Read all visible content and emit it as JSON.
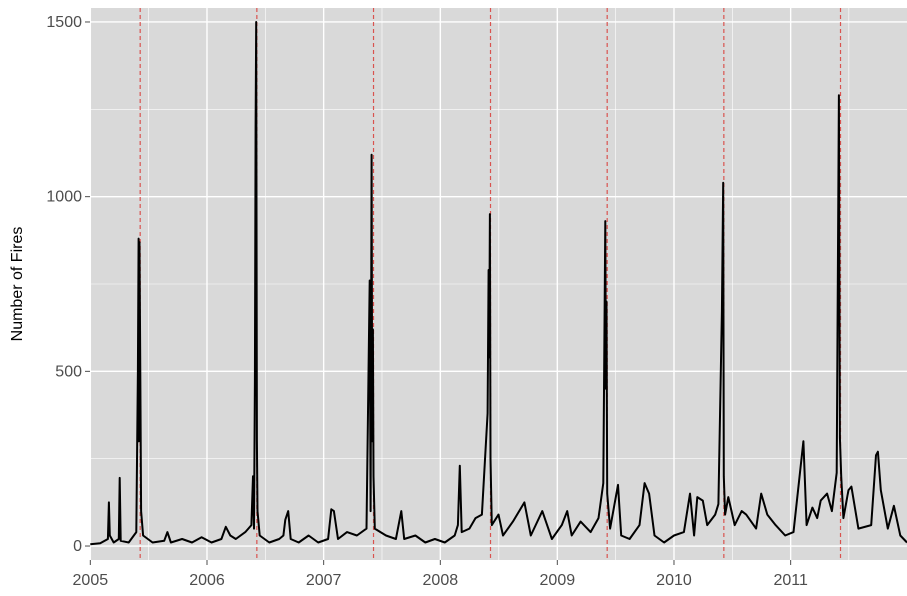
{
  "chart_data": {
    "type": "line",
    "title": "",
    "xlabel": "",
    "ylabel": "Number of Fires",
    "xlim": [
      "2004-12-31",
      "2011-12-31"
    ],
    "ylim": [
      -40,
      1540
    ],
    "grid": true,
    "legend": "none",
    "colors": {
      "panel": "#d9d9d9",
      "grid": "#ffffff",
      "line": "#000000",
      "vline": "#d9534f"
    },
    "x_ticks": [
      {
        "label": "2005",
        "date": "2005-01-01"
      },
      {
        "label": "2006",
        "date": "2006-01-01"
      },
      {
        "label": "2007",
        "date": "2007-01-01"
      },
      {
        "label": "2008",
        "date": "2008-01-01"
      },
      {
        "label": "2009",
        "date": "2009-01-01"
      },
      {
        "label": "2010",
        "date": "2010-01-01"
      },
      {
        "label": "2011",
        "date": "2011-01-01"
      }
    ],
    "y_ticks": [
      {
        "label": "0",
        "value": 0
      },
      {
        "label": "500",
        "value": 500
      },
      {
        "label": "1000",
        "value": 1000
      },
      {
        "label": "1500",
        "value": 1500
      }
    ],
    "reference_lines": [
      "2005-06-06",
      "2006-06-06",
      "2007-06-06",
      "2008-06-06",
      "2009-06-06",
      "2010-06-06",
      "2011-06-06"
    ],
    "series": [
      {
        "values": [
          [
            "2005-01-01",
            5
          ],
          [
            "2005-02-01",
            8
          ],
          [
            "2005-02-25",
            20
          ],
          [
            "2005-02-28",
            125
          ],
          [
            "2005-03-03",
            30
          ],
          [
            "2005-03-15",
            10
          ],
          [
            "2005-03-31",
            20
          ],
          [
            "2005-04-03",
            195
          ],
          [
            "2005-04-06",
            15
          ],
          [
            "2005-05-01",
            10
          ],
          [
            "2005-05-25",
            40
          ],
          [
            "2005-05-30",
            500
          ],
          [
            "2005-06-01",
            880
          ],
          [
            "2005-06-02",
            300
          ],
          [
            "2005-06-04",
            870
          ],
          [
            "2005-06-07",
            400
          ],
          [
            "2005-06-09",
            100
          ],
          [
            "2005-06-15",
            30
          ],
          [
            "2005-07-15",
            10
          ],
          [
            "2005-08-20",
            15
          ],
          [
            "2005-08-30",
            40
          ],
          [
            "2005-09-10",
            10
          ],
          [
            "2005-10-15",
            20
          ],
          [
            "2005-11-15",
            10
          ],
          [
            "2005-12-15",
            25
          ],
          [
            "2006-01-15",
            10
          ],
          [
            "2006-02-15",
            20
          ],
          [
            "2006-03-01",
            55
          ],
          [
            "2006-03-15",
            30
          ],
          [
            "2006-04-01",
            20
          ],
          [
            "2006-05-01",
            40
          ],
          [
            "2006-05-20",
            60
          ],
          [
            "2006-05-25",
            200
          ],
          [
            "2006-05-28",
            50
          ],
          [
            "2006-05-31",
            470
          ],
          [
            "2006-06-02",
            1200
          ],
          [
            "2006-06-04",
            1500
          ],
          [
            "2006-06-06",
            300
          ],
          [
            "2006-06-08",
            100
          ],
          [
            "2006-06-15",
            30
          ],
          [
            "2006-07-15",
            10
          ],
          [
            "2006-08-15",
            20
          ],
          [
            "2006-08-28",
            30
          ],
          [
            "2006-09-03",
            75
          ],
          [
            "2006-09-12",
            100
          ],
          [
            "2006-09-20",
            20
          ],
          [
            "2006-10-15",
            10
          ],
          [
            "2006-11-15",
            30
          ],
          [
            "2006-12-15",
            10
          ],
          [
            "2007-01-15",
            20
          ],
          [
            "2007-01-25",
            105
          ],
          [
            "2007-02-02",
            100
          ],
          [
            "2007-02-15",
            20
          ],
          [
            "2007-03-15",
            40
          ],
          [
            "2007-04-15",
            30
          ],
          [
            "2007-05-15",
            50
          ],
          [
            "2007-05-25",
            760
          ],
          [
            "2007-05-28",
            100
          ],
          [
            "2007-05-31",
            1120
          ],
          [
            "2007-06-02",
            300
          ],
          [
            "2007-06-04",
            620
          ],
          [
            "2007-06-06",
            200
          ],
          [
            "2007-06-10",
            50
          ],
          [
            "2007-07-15",
            30
          ],
          [
            "2007-08-15",
            20
          ],
          [
            "2007-09-01",
            100
          ],
          [
            "2007-09-10",
            20
          ],
          [
            "2007-10-15",
            30
          ],
          [
            "2007-11-15",
            10
          ],
          [
            "2007-12-15",
            20
          ],
          [
            "2008-01-15",
            10
          ],
          [
            "2008-02-15",
            30
          ],
          [
            "2008-02-25",
            60
          ],
          [
            "2008-03-02",
            230
          ],
          [
            "2008-03-08",
            40
          ],
          [
            "2008-04-01",
            50
          ],
          [
            "2008-04-20",
            80
          ],
          [
            "2008-05-10",
            90
          ],
          [
            "2008-05-28",
            380
          ],
          [
            "2008-05-31",
            790
          ],
          [
            "2008-06-02",
            540
          ],
          [
            "2008-06-04",
            950
          ],
          [
            "2008-06-06",
            250
          ],
          [
            "2008-06-10",
            60
          ],
          [
            "2008-07-01",
            90
          ],
          [
            "2008-07-15",
            30
          ],
          [
            "2008-08-15",
            70
          ],
          [
            "2008-09-20",
            125
          ],
          [
            "2008-10-10",
            30
          ],
          [
            "2008-11-15",
            100
          ],
          [
            "2008-12-15",
            20
          ],
          [
            "2009-01-15",
            60
          ],
          [
            "2009-02-01",
            100
          ],
          [
            "2009-02-15",
            30
          ],
          [
            "2009-03-15",
            70
          ],
          [
            "2009-04-15",
            40
          ],
          [
            "2009-05-10",
            80
          ],
          [
            "2009-05-25",
            180
          ],
          [
            "2009-05-31",
            930
          ],
          [
            "2009-06-02",
            450
          ],
          [
            "2009-06-04",
            700
          ],
          [
            "2009-06-06",
            150
          ],
          [
            "2009-06-15",
            50
          ],
          [
            "2009-07-10",
            175
          ],
          [
            "2009-07-20",
            30
          ],
          [
            "2009-08-15",
            20
          ],
          [
            "2009-09-15",
            60
          ],
          [
            "2009-10-01",
            180
          ],
          [
            "2009-10-15",
            150
          ],
          [
            "2009-11-01",
            30
          ],
          [
            "2009-12-01",
            10
          ],
          [
            "2010-01-01",
            30
          ],
          [
            "2010-02-01",
            40
          ],
          [
            "2010-02-20",
            150
          ],
          [
            "2010-03-05",
            30
          ],
          [
            "2010-03-15",
            140
          ],
          [
            "2010-04-01",
            130
          ],
          [
            "2010-04-15",
            60
          ],
          [
            "2010-05-10",
            90
          ],
          [
            "2010-05-20",
            120
          ],
          [
            "2010-05-31",
            670
          ],
          [
            "2010-06-04",
            1040
          ],
          [
            "2010-06-06",
            200
          ],
          [
            "2010-06-10",
            90
          ],
          [
            "2010-06-20",
            140
          ],
          [
            "2010-07-10",
            60
          ],
          [
            "2010-08-01",
            100
          ],
          [
            "2010-08-15",
            90
          ],
          [
            "2010-09-15",
            50
          ],
          [
            "2010-10-01",
            150
          ],
          [
            "2010-10-20",
            90
          ],
          [
            "2010-11-15",
            60
          ],
          [
            "2010-12-15",
            30
          ],
          [
            "2011-01-10",
            40
          ],
          [
            "2011-02-10",
            300
          ],
          [
            "2011-02-20",
            60
          ],
          [
            "2011-03-10",
            110
          ],
          [
            "2011-03-25",
            80
          ],
          [
            "2011-04-05",
            130
          ],
          [
            "2011-04-25",
            150
          ],
          [
            "2011-05-10",
            100
          ],
          [
            "2011-05-25",
            210
          ],
          [
            "2011-06-01",
            1290
          ],
          [
            "2011-06-04",
            310
          ],
          [
            "2011-06-08",
            200
          ],
          [
            "2011-06-15",
            80
          ],
          [
            "2011-07-01",
            160
          ],
          [
            "2011-07-10",
            170
          ],
          [
            "2011-08-01",
            50
          ],
          [
            "2011-09-10",
            60
          ],
          [
            "2011-09-25",
            260
          ],
          [
            "2011-10-01",
            270
          ],
          [
            "2011-10-10",
            160
          ],
          [
            "2011-11-01",
            50
          ],
          [
            "2011-11-20",
            115
          ],
          [
            "2011-12-10",
            30
          ],
          [
            "2011-12-31",
            10
          ]
        ]
      }
    ]
  }
}
